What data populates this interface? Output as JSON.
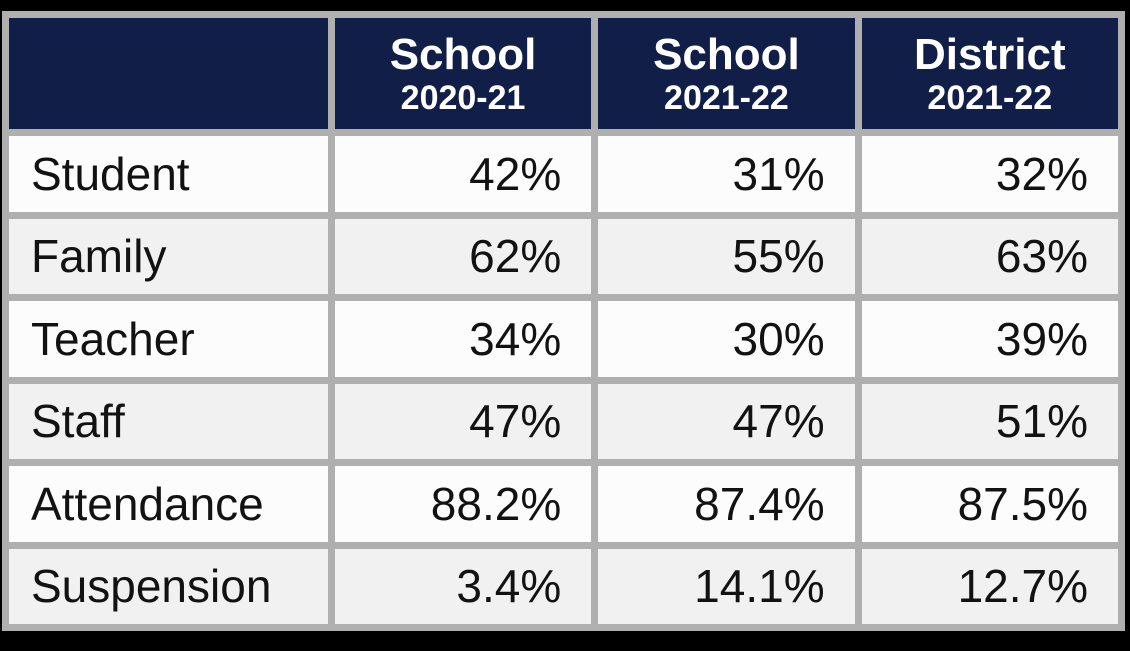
{
  "chart_data": {
    "type": "table",
    "columns": [
      {
        "title": "School",
        "subtitle": "2020-21"
      },
      {
        "title": "School",
        "subtitle": "2021-22"
      },
      {
        "title": "District",
        "subtitle": "2021-22"
      }
    ],
    "rows": [
      {
        "label": "Student",
        "values": [
          "42%",
          "31%",
          "32%"
        ]
      },
      {
        "label": "Family",
        "values": [
          "62%",
          "55%",
          "63%"
        ]
      },
      {
        "label": "Teacher",
        "values": [
          "34%",
          "30%",
          "39%"
        ]
      },
      {
        "label": "Staff",
        "values": [
          "47%",
          "47%",
          "51%"
        ]
      },
      {
        "label": "Attendance",
        "values": [
          "88.2%",
          "87.4%",
          "87.5%"
        ]
      },
      {
        "label": "Suspension",
        "values": [
          "3.4%",
          "14.1%",
          "12.7%"
        ]
      }
    ]
  },
  "colors": {
    "page_frame": "#000000",
    "header_bg": "#111F48",
    "header_text": "#FFFFFF",
    "cell_border": "#AFAFAF",
    "row_bg": "#FCFCFC",
    "row_alt_bg": "#F1F1F1",
    "body_text": "#121212"
  }
}
